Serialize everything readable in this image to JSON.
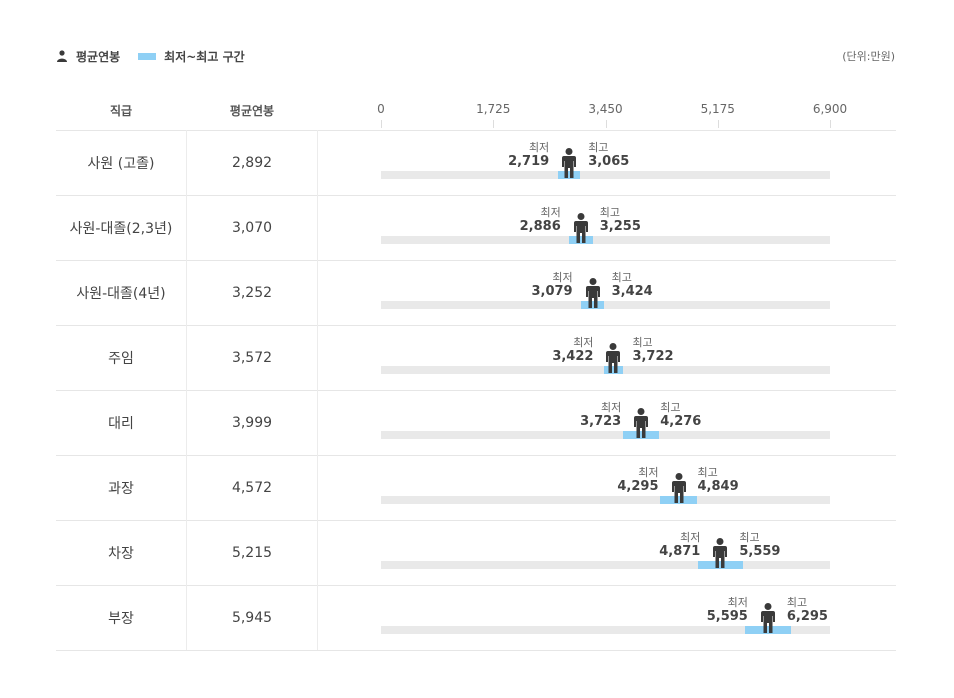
{
  "legend": {
    "avg_label": "평균연봉",
    "range_label": "최저~최고 구간",
    "unit": "(단위:만원)"
  },
  "header": {
    "col_grade": "직급",
    "col_avg": "평균연봉"
  },
  "labels": {
    "min": "최저",
    "max": "최고"
  },
  "colors": {
    "range": "#8fd0f5",
    "track": "#e9e9e9",
    "person": "#3a3a3a"
  },
  "chart_data": {
    "type": "range-dot",
    "xlim": [
      0,
      6900
    ],
    "ticks": [
      "0",
      "1,725",
      "3,450",
      "5,175",
      "6,900"
    ],
    "tick_values": [
      0,
      1725,
      3450,
      5175,
      6900
    ],
    "rows": [
      {
        "grade": "사원 (고졸)",
        "avg": 2892,
        "avg_text": "2,892",
        "min": 2719,
        "min_text": "2,719",
        "max": 3065,
        "max_text": "3,065"
      },
      {
        "grade": "사원-대졸(2,3년)",
        "avg": 3070,
        "avg_text": "3,070",
        "min": 2886,
        "min_text": "2,886",
        "max": 3255,
        "max_text": "3,255"
      },
      {
        "grade": "사원-대졸(4년)",
        "avg": 3252,
        "avg_text": "3,252",
        "min": 3079,
        "min_text": "3,079",
        "max": 3424,
        "max_text": "3,424"
      },
      {
        "grade": "주임",
        "avg": 3572,
        "avg_text": "3,572",
        "min": 3422,
        "min_text": "3,422",
        "max": 3722,
        "max_text": "3,722"
      },
      {
        "grade": "대리",
        "avg": 3999,
        "avg_text": "3,999",
        "min": 3723,
        "min_text": "3,723",
        "max": 4276,
        "max_text": "4,276"
      },
      {
        "grade": "과장",
        "avg": 4572,
        "avg_text": "4,572",
        "min": 4295,
        "min_text": "4,295",
        "max": 4849,
        "max_text": "4,849"
      },
      {
        "grade": "차장",
        "avg": 5215,
        "avg_text": "5,215",
        "min": 4871,
        "min_text": "4,871",
        "max": 5559,
        "max_text": "5,559"
      },
      {
        "grade": "부장",
        "avg": 5945,
        "avg_text": "5,945",
        "min": 5595,
        "min_text": "5,595",
        "max": 6295,
        "max_text": "6,295"
      }
    ]
  }
}
